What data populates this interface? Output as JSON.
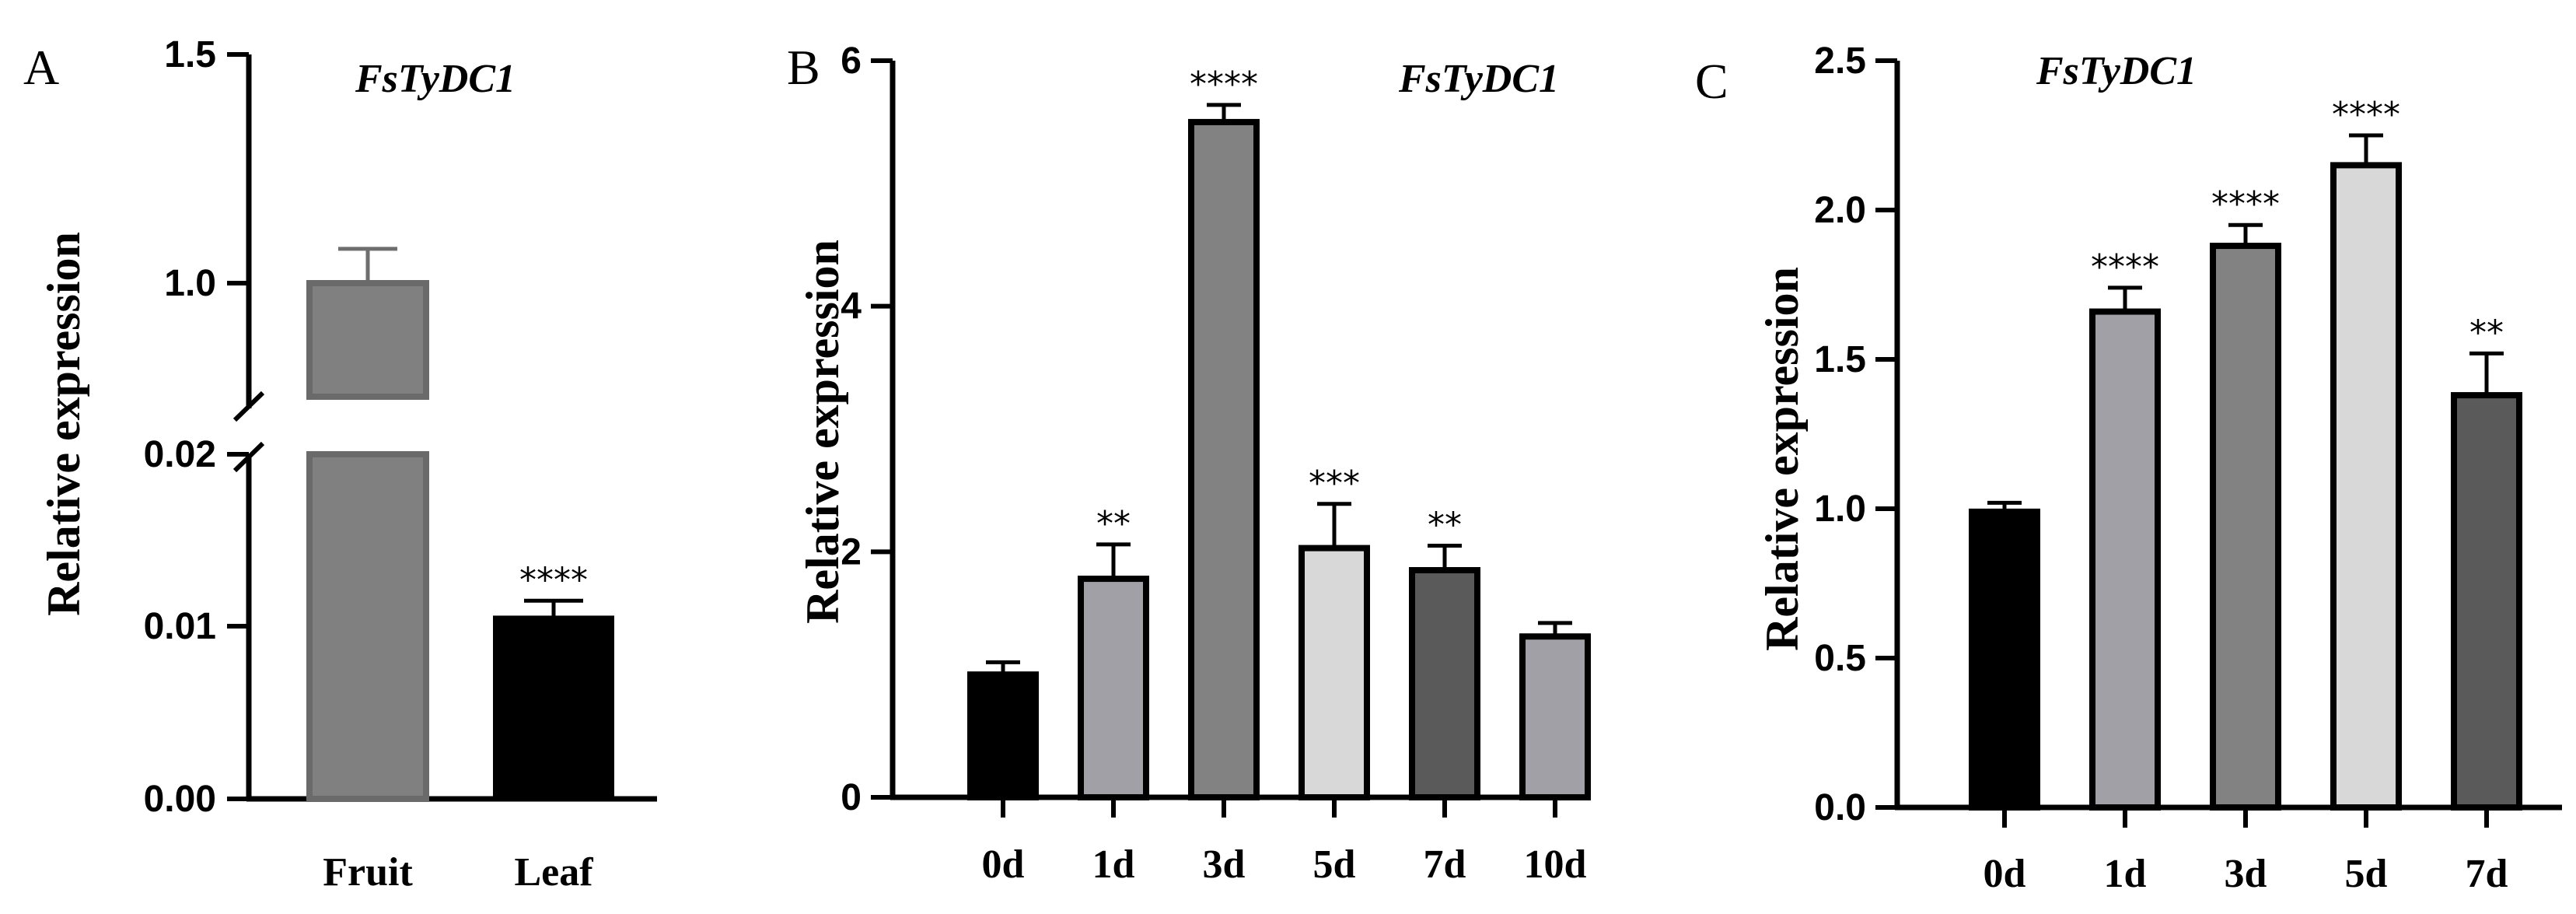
{
  "chart_data": [
    {
      "panel": "A",
      "type": "bar",
      "title": "FsTyDC1",
      "ylabel": "Relative expression",
      "xlabel": "",
      "categories": [
        "Fruit",
        "Leaf"
      ],
      "values": [
        1.0,
        0.0105
      ],
      "errors": [
        0.075,
        0.001
      ],
      "significance": [
        "",
        "****"
      ],
      "colors": [
        "#808080",
        "#000000"
      ],
      "axis_break": true,
      "y_lower_segment": {
        "range": [
          0,
          0.02
        ],
        "ticks": [
          "0.00",
          "0.01",
          "0.02"
        ]
      },
      "y_upper_segment": {
        "range": [
          0.85,
          1.5
        ],
        "ticks": [
          "1.0",
          "1.5"
        ]
      },
      "grid": false
    },
    {
      "panel": "B",
      "type": "bar",
      "title": "FsTyDC1",
      "ylabel": "Relative expression",
      "xlabel": "",
      "categories": [
        "0d",
        "1d",
        "3d",
        "5d",
        "7d",
        "10d"
      ],
      "values": [
        1.0,
        1.78,
        5.5,
        2.03,
        1.85,
        1.31
      ],
      "errors": [
        0.1,
        0.28,
        0.14,
        0.36,
        0.2,
        0.11
      ],
      "significance": [
        "",
        "**",
        "****",
        "***",
        "**",
        ""
      ],
      "colors": [
        "#000000",
        "#a0a0a6",
        "#828282",
        "#d8d8d8",
        "#5a5a5a",
        "#a0a0a6"
      ],
      "ylim": [
        0,
        6
      ],
      "yticks": [
        "0",
        "2",
        "4",
        "6"
      ],
      "grid": false
    },
    {
      "panel": "C",
      "type": "bar",
      "title": "FsTyDC1",
      "ylabel": "Relative expression",
      "xlabel": "",
      "categories": [
        "0d",
        "1d",
        "3d",
        "5d",
        "7d"
      ],
      "values": [
        0.99,
        1.66,
        1.88,
        2.15,
        1.38
      ],
      "errors": [
        0.03,
        0.08,
        0.07,
        0.1,
        0.14
      ],
      "significance": [
        "",
        "****",
        "****",
        "****",
        "**"
      ],
      "colors": [
        "#000000",
        "#a0a0a6",
        "#828282",
        "#d8d8d8",
        "#5a5a5a"
      ],
      "ylim": [
        0,
        2.5
      ],
      "yticks": [
        "0.0",
        "0.5",
        "1.0",
        "1.5",
        "2.0",
        "2.5"
      ],
      "grid": false
    }
  ]
}
